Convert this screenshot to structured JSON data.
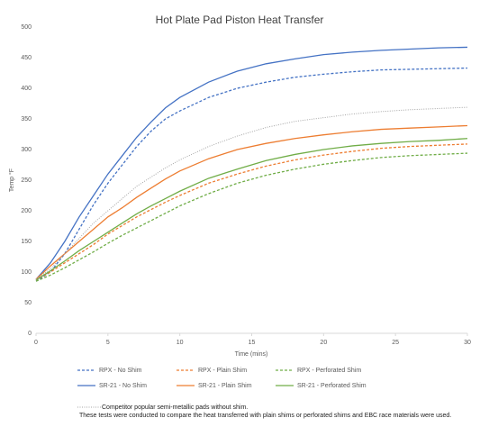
{
  "chart_data": {
    "type": "line",
    "title": "Hot Plate Pad Piston Heat Transfer",
    "xlabel": "Time (mins)",
    "ylabel": "Temp °F",
    "x": [
      0,
      1,
      2,
      3,
      4,
      5,
      6,
      7,
      8,
      9,
      10,
      12,
      14,
      16,
      18,
      20,
      22,
      24,
      26,
      28,
      30
    ],
    "xlim": [
      0,
      30
    ],
    "xticks": [
      0,
      5,
      10,
      15,
      20,
      25,
      30
    ],
    "ylim": [
      0,
      500
    ],
    "yticks": [
      0,
      50,
      100,
      150,
      200,
      250,
      300,
      350,
      400,
      450,
      500
    ],
    "grid": false,
    "series": [
      {
        "name": "RPX - No Shim",
        "color": "#4472c4",
        "dash": "dashed",
        "values": [
          85,
          100,
          130,
          170,
          210,
          245,
          275,
          305,
          330,
          350,
          363,
          385,
          400,
          410,
          418,
          423,
          427,
          430,
          431,
          432,
          433
        ]
      },
      {
        "name": "RPX - Plain Shim",
        "color": "#ed7d31",
        "dash": "dashed",
        "values": [
          87,
          100,
          115,
          130,
          145,
          162,
          176,
          190,
          202,
          214,
          225,
          245,
          260,
          273,
          283,
          291,
          297,
          302,
          305,
          307,
          309
        ]
      },
      {
        "name": "RPX - Perforated Shim",
        "color": "#70ad47",
        "dash": "dashed",
        "values": [
          85,
          95,
          107,
          120,
          133,
          147,
          160,
          172,
          184,
          196,
          208,
          228,
          245,
          258,
          268,
          276,
          282,
          287,
          290,
          292,
          294
        ]
      },
      {
        "name": "SR-21 - No Shim",
        "color": "#4472c4",
        "dash": "solid",
        "values": [
          88,
          115,
          150,
          190,
          225,
          260,
          290,
          320,
          345,
          368,
          385,
          410,
          428,
          440,
          448,
          455,
          459,
          462,
          464,
          466,
          467
        ]
      },
      {
        "name": "SR-21 - Plain Shim",
        "color": "#ed7d31",
        "dash": "solid",
        "values": [
          88,
          110,
          130,
          150,
          170,
          190,
          205,
          222,
          237,
          252,
          265,
          285,
          300,
          310,
          318,
          324,
          329,
          333,
          335,
          337,
          339
        ]
      },
      {
        "name": "SR-21 - Perforated Shim",
        "color": "#70ad47",
        "dash": "solid",
        "values": [
          87,
          102,
          118,
          135,
          150,
          165,
          180,
          195,
          208,
          220,
          232,
          253,
          268,
          282,
          292,
          300,
          306,
          310,
          313,
          315,
          318
        ]
      },
      {
        "color": "#a5a5a5",
        "dash": "dotted",
        "values": [
          88,
          105,
          130,
          155,
          180,
          200,
          220,
          240,
          255,
          270,
          283,
          305,
          322,
          336,
          346,
          352,
          358,
          362,
          365,
          367,
          369
        ]
      }
    ],
    "notes": [
      "Competitor popular semi-metallic pads without shim.",
      "These tests were conducted to  compare the heat transferred with plain shims or perforated shims and EBC race materials were used."
    ]
  }
}
